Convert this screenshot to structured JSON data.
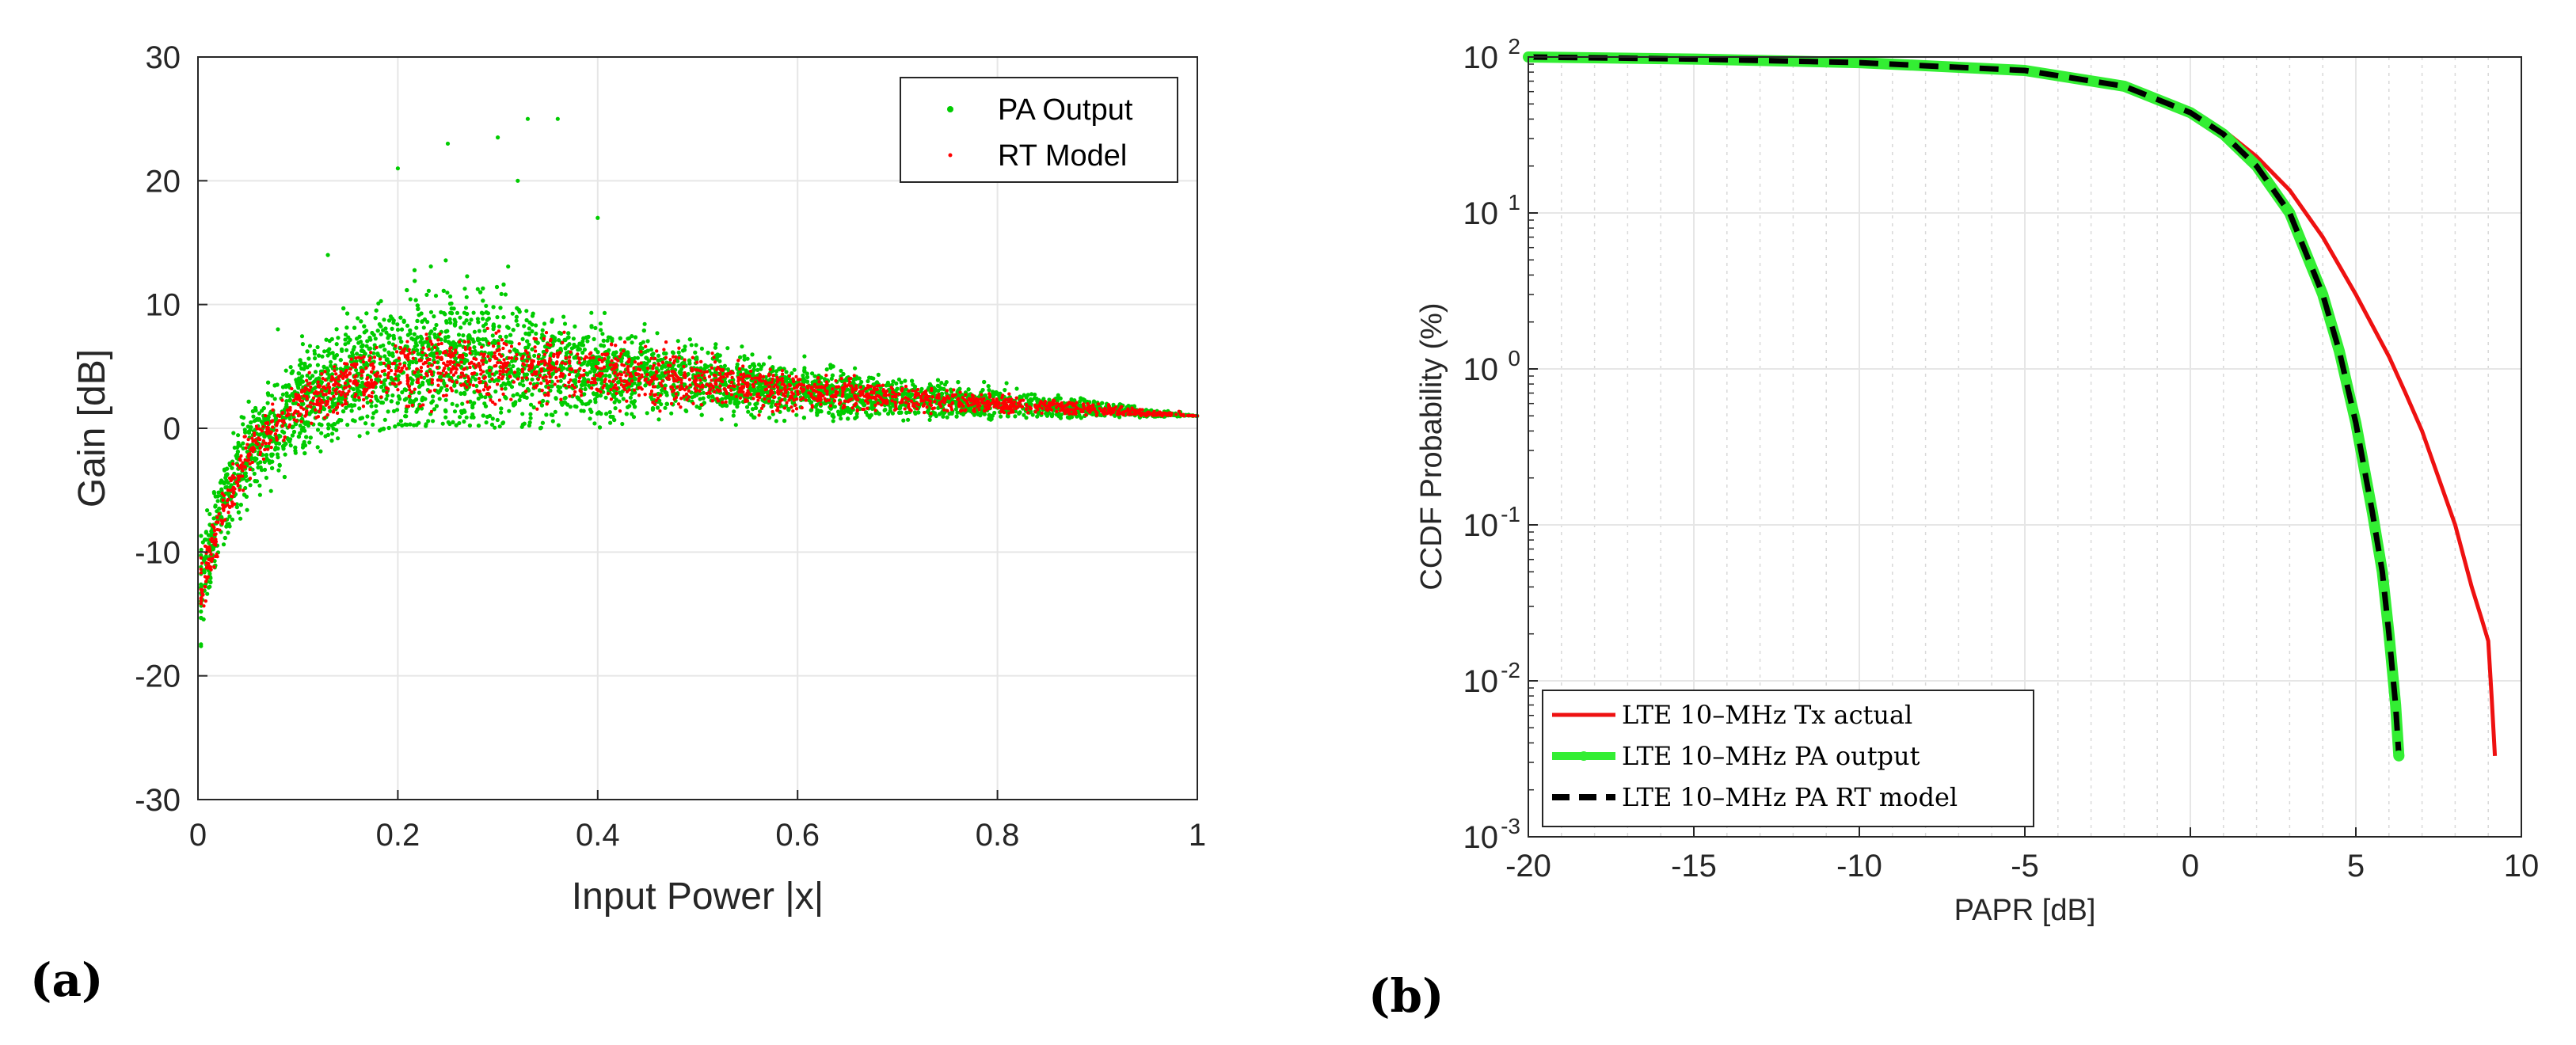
{
  "panels": {
    "a": "(a)",
    "b": "(b)"
  },
  "chart_data": [
    {
      "type": "scatter",
      "xlabel": "Input Power |x|",
      "ylabel": "Gain [dB]",
      "xlim": [
        0,
        1
      ],
      "ylim": [
        -30,
        30
      ],
      "xticks": [
        "0",
        "0.2",
        "0.4",
        "0.6",
        "0.8",
        "1"
      ],
      "yticks": [
        "30",
        "20",
        "10",
        "0",
        "-10",
        "-20",
        "-30"
      ],
      "grid": true,
      "legend_position": "top-right",
      "series": [
        {
          "name": "PA Output",
          "color": "#00cc00",
          "marker": "dot",
          "envelope": {
            "x": [
              0.0,
              0.02,
              0.05,
              0.1,
              0.15,
              0.2,
              0.25,
              0.3,
              0.35,
              0.4,
              0.5,
              0.6,
              0.7,
              0.8,
              0.9,
              0.95,
              1.0
            ],
            "upper": [
              -8,
              -2,
              5,
              10,
              13,
              16,
              18,
              17,
              14,
              11,
              8,
              6.5,
              5.5,
              4.5,
              3,
              2,
              1
            ],
            "lower": [
              -20,
              -13,
              -7,
              -3,
              -1,
              0,
              0,
              0,
              0,
              0,
              0,
              0.3,
              0.5,
              0.7,
              0.8,
              0.9,
              1
            ],
            "center": [
              -14,
              -7,
              -2,
              2,
              4,
              5,
              5.5,
              5.5,
              5,
              4.5,
              4,
              3,
              2.5,
              2,
              1.5,
              1.2,
              1
            ]
          },
          "outliers": [
            {
              "x": 0.2,
              "y": 21
            },
            {
              "x": 0.25,
              "y": 23
            },
            {
              "x": 0.3,
              "y": 23.5
            },
            {
              "x": 0.33,
              "y": 25
            },
            {
              "x": 0.36,
              "y": 25
            },
            {
              "x": 0.32,
              "y": 20
            },
            {
              "x": 0.4,
              "y": 17
            },
            {
              "x": 0.08,
              "y": 8
            },
            {
              "x": 0.13,
              "y": 14
            }
          ]
        },
        {
          "name": "RT Model",
          "color": "#ff0000",
          "marker": "dot",
          "envelope": {
            "x": [
              0.0,
              0.02,
              0.05,
              0.1,
              0.15,
              0.2,
              0.25,
              0.3,
              0.35,
              0.4,
              0.5,
              0.6,
              0.7,
              0.8,
              0.9,
              0.95,
              1.0
            ],
            "upper": [
              -10,
              -5,
              1,
              5,
              7,
              9,
              10,
              10,
              9.5,
              9,
              7,
              5.5,
              4.5,
              3.5,
              2.5,
              1.8,
              1
            ],
            "lower": [
              -18,
              -11,
              -5,
              -1,
              0.5,
              1,
              1.5,
              1.5,
              1.5,
              1.5,
              1,
              1,
              1,
              1,
              1,
              1,
              1
            ],
            "center": [
              -14,
              -8,
              -2,
              2,
              3.5,
              4.5,
              5,
              5,
              5,
              4.5,
              4,
              3,
              2.5,
              2,
              1.5,
              1.2,
              1
            ]
          }
        }
      ]
    },
    {
      "type": "line",
      "xlabel": "PAPR [dB]",
      "ylabel": "CCDF Probability (%)",
      "xlim": [
        -20,
        10
      ],
      "ylim": [
        0.001,
        100
      ],
      "yscale": "log",
      "xticks": [
        "-20",
        "-15",
        "-10",
        "-5",
        "0",
        "5",
        "10"
      ],
      "yticks": [
        {
          "base": "10",
          "exp": "2"
        },
        {
          "base": "10",
          "exp": "1"
        },
        {
          "base": "10",
          "exp": "0"
        },
        {
          "base": "10",
          "exp": "-1"
        },
        {
          "base": "10",
          "exp": "-2"
        },
        {
          "base": "10",
          "exp": "-3"
        }
      ],
      "grid": true,
      "legend_position": "bottom-left",
      "series": [
        {
          "name": "LTE 10–MHz Tx actual",
          "color": "#ee1111",
          "style": "solid",
          "x": [
            -20,
            -15,
            -10,
            -5,
            -2,
            0,
            1,
            2,
            3,
            4,
            5,
            6,
            6.5,
            7,
            7.5,
            8,
            8.5,
            8.8,
            9.0,
            9.1,
            9.2
          ],
          "y": [
            100,
            96,
            91,
            80,
            62,
            44,
            34,
            23,
            14,
            7,
            3,
            1.2,
            0.7,
            0.4,
            0.2,
            0.1,
            0.04,
            0.025,
            0.018,
            0.008,
            0.0033
          ]
        },
        {
          "name": "LTE 10–MHz PA output",
          "color": "#33ee33",
          "style": "solid-thick",
          "x": [
            -20,
            -15,
            -10,
            -5,
            -2,
            0,
            1,
            2,
            3,
            4,
            4.5,
            5,
            5.5,
            5.8,
            6.0,
            6.2,
            6.3
          ],
          "y": [
            100,
            97,
            92,
            82,
            65,
            44,
            32,
            20,
            10,
            3,
            1.3,
            0.45,
            0.12,
            0.05,
            0.02,
            0.007,
            0.0033
          ]
        },
        {
          "name": "LTE 10–MHz PA RT model",
          "color": "#000000",
          "style": "dashed",
          "x": [
            -20,
            -15,
            -10,
            -5,
            -2,
            0,
            1,
            2,
            3,
            4,
            4.5,
            5,
            5.5,
            5.8,
            6.0,
            6.2,
            6.3
          ],
          "y": [
            100,
            97,
            92,
            82,
            65,
            44,
            32,
            20,
            10,
            3,
            1.3,
            0.45,
            0.12,
            0.05,
            0.02,
            0.007,
            0.0033
          ]
        }
      ]
    }
  ]
}
